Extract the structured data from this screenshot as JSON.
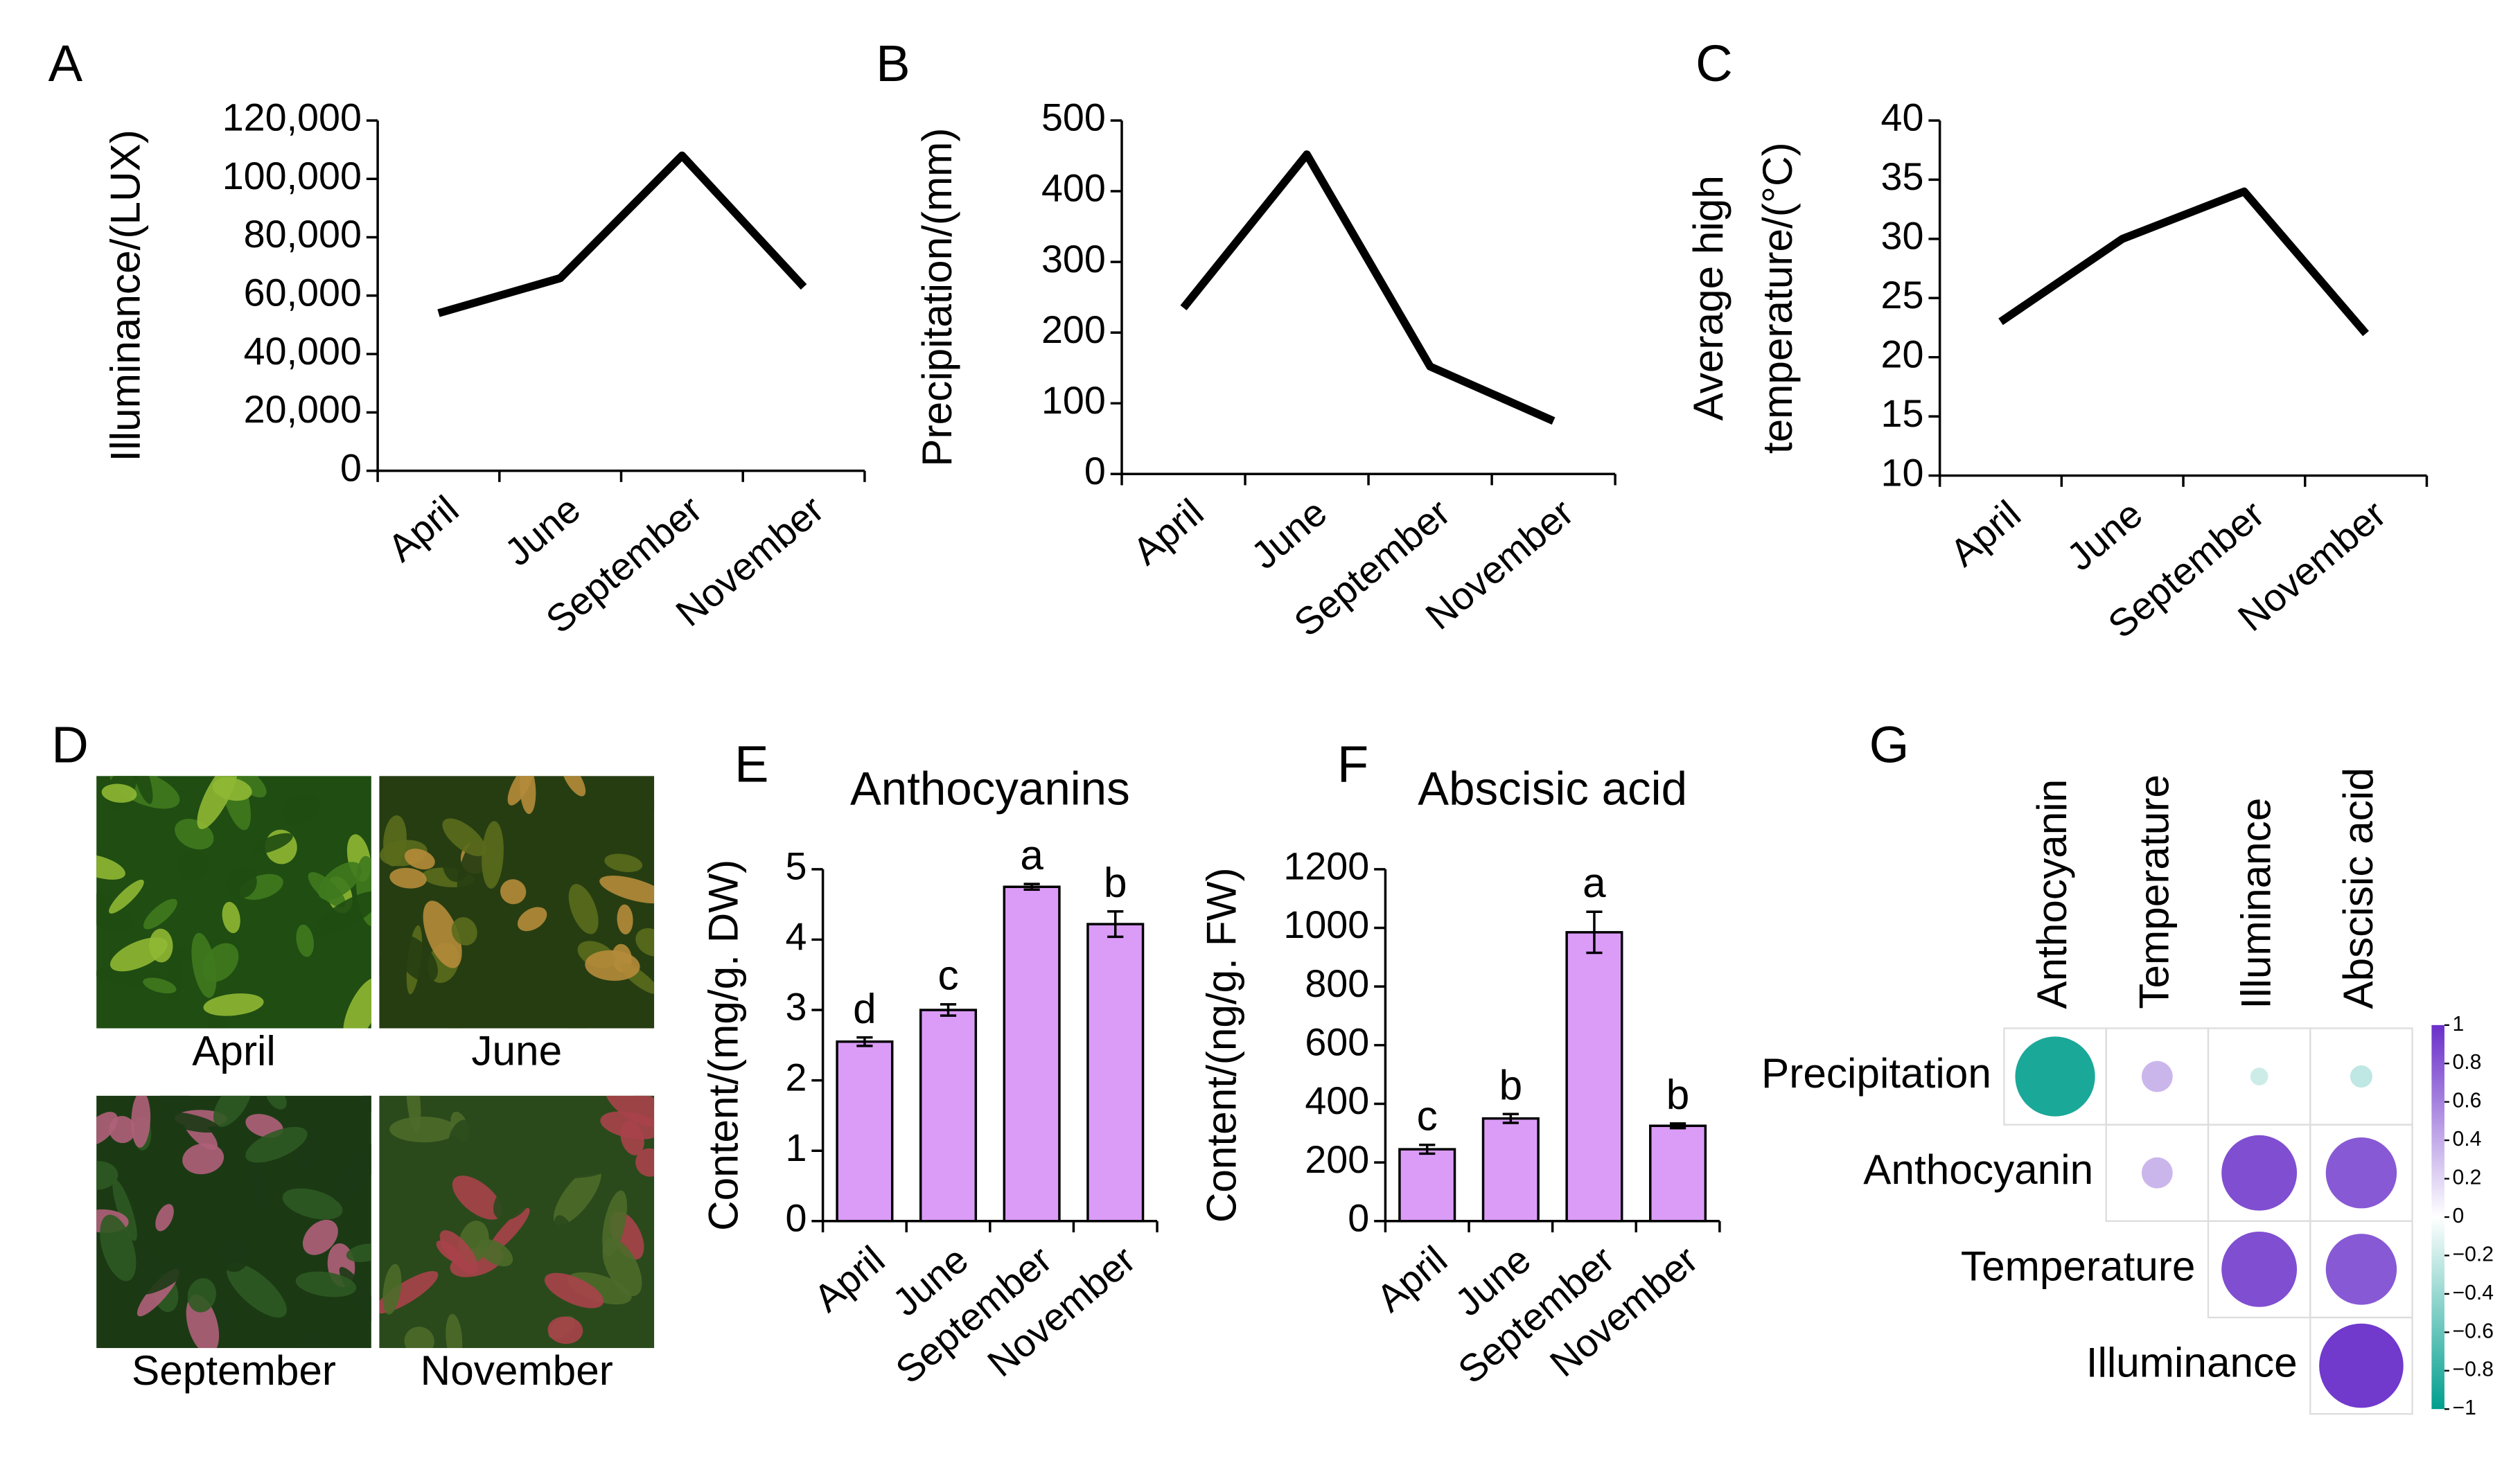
{
  "chart_data": [
    {
      "type": "line",
      "panel": "A",
      "ylabel": [
        "Illuminance/(LUX)"
      ],
      "categories": [
        "April",
        "June",
        "September",
        "November"
      ],
      "series": [
        {
          "color": "#000000",
          "values": [
            54000,
            66000,
            108000,
            63000
          ]
        }
      ],
      "ylim": [
        0,
        120000
      ],
      "yticks": [
        0,
        {
          "value": 20000,
          "label": "20,000"
        },
        {
          "value": 40000,
          "label": "40,000"
        },
        {
          "value": 60000,
          "label": "60,000"
        },
        {
          "value": 80000,
          "label": "80,000"
        },
        {
          "value": 100000,
          "label": "100,000"
        },
        {
          "value": 120000,
          "label": "120,000"
        }
      ]
    },
    {
      "type": "line",
      "panel": "B",
      "ylabel": [
        "Precipitation/(mm)"
      ],
      "categories": [
        "April",
        "June",
        "September",
        "November"
      ],
      "series": [
        {
          "color": "#000000",
          "values": [
            235,
            452,
            152,
            75
          ]
        }
      ],
      "ylim": [
        0,
        500
      ],
      "yticks": [
        0,
        100,
        200,
        300,
        400,
        500
      ]
    },
    {
      "type": "line",
      "panel": "C",
      "ylabel": [
        "Average high",
        "temperature/(°C)"
      ],
      "categories": [
        "April",
        "June",
        "September",
        "November"
      ],
      "series": [
        {
          "color": "#000000",
          "values": [
            23,
            30,
            34,
            22
          ]
        }
      ],
      "ylim": [
        10,
        40
      ],
      "yticks": [
        10,
        15,
        20,
        25,
        30,
        35,
        40
      ]
    },
    {
      "type": "bar",
      "panel": "E",
      "title": "Anthocyanins",
      "ylabel": [
        "Content/(mg/g. DW)"
      ],
      "categories": [
        "April",
        "June",
        "September",
        "November"
      ],
      "values": [
        2.55,
        3.0,
        4.75,
        4.22
      ],
      "errors": [
        0.06,
        0.08,
        0.04,
        0.18
      ],
      "annotations": [
        "d",
        "c",
        "a",
        "b"
      ],
      "color": "#db9cf8",
      "ylim": [
        0,
        5
      ],
      "yticks": [
        0,
        1,
        2,
        3,
        4,
        5
      ]
    },
    {
      "type": "bar",
      "panel": "F",
      "title": "Abscisic acid",
      "ylabel": [
        "Content/(ng/g. FW)"
      ],
      "categories": [
        "April",
        "June",
        "September",
        "November"
      ],
      "values": [
        245,
        350,
        985,
        325
      ],
      "errors": [
        15,
        15,
        70,
        8
      ],
      "annotations": [
        "c",
        "b",
        "a",
        "b"
      ],
      "color": "#db9cf8",
      "ylim": [
        0,
        1200
      ],
      "yticks": [
        0,
        200,
        400,
        600,
        800,
        1000,
        1200
      ]
    },
    {
      "type": "correlation",
      "panel": "G",
      "columns": [
        "Anthocyanin",
        "Temperature",
        "Illuminance",
        "Abscisic acid"
      ],
      "rows": [
        "Precipitation",
        "Anthocyanin",
        "Temperature",
        "Illuminance"
      ],
      "matrix": [
        [
          -0.9,
          0.35,
          -0.2,
          -0.25
        ],
        [
          null,
          0.35,
          0.85,
          0.8
        ],
        [
          null,
          null,
          0.85,
          0.8
        ],
        [
          null,
          null,
          null,
          0.95
        ]
      ],
      "colormap": [
        "#009e8e",
        "#ffffff",
        "#6a2fc9"
      ],
      "clim": [
        -1,
        1
      ],
      "colorbar_ticks": [
        1,
        0.8,
        0.6,
        0.4,
        0.2,
        0,
        {
          "value": -0.2,
          "label": "−0.2"
        },
        {
          "value": -0.4,
          "label": "−0.4"
        },
        {
          "value": -0.6,
          "label": "−0.6"
        },
        {
          "value": -0.8,
          "label": "−0.8"
        },
        {
          "value": -1,
          "label": "−1"
        }
      ]
    }
  ],
  "photos": {
    "panel": "D",
    "captions": [
      "April",
      "June",
      "September",
      "November"
    ]
  }
}
